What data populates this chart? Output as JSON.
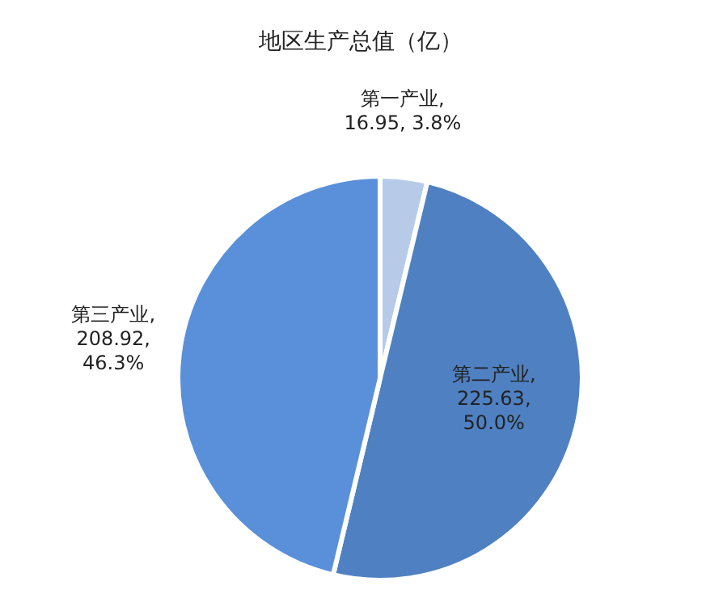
{
  "chart_data": {
    "type": "pie",
    "title": "地区生产总值（亿）",
    "categories": [
      "第一产业",
      "第二产业",
      "第三产业"
    ],
    "values": [
      16.95,
      225.63,
      208.92
    ],
    "value_labels": [
      ",\n16.95, 3.8%",
      ",\n225.63,\n50.0%",
      ",\n208.92,\n46.3%"
    ],
    "colors": [
      "#b7cbe8",
      "#4f81c2",
      "#5a90da"
    ],
    "legend": false
  }
}
